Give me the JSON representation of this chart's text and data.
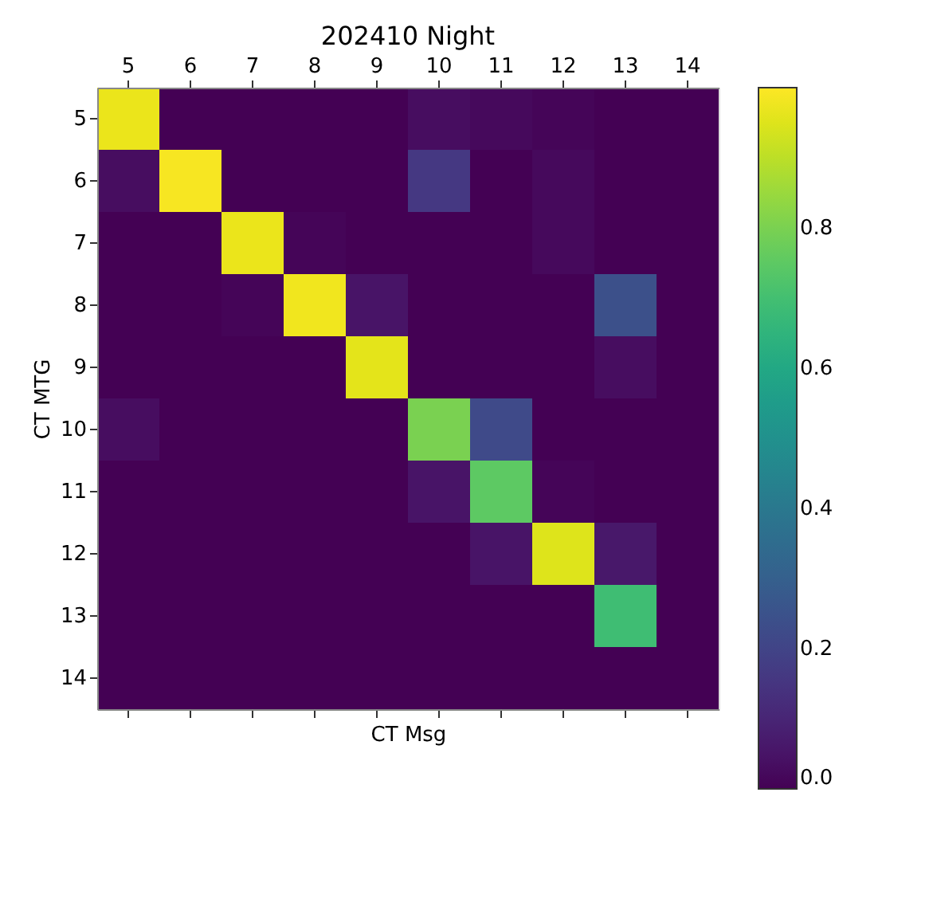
{
  "chart_data": {
    "type": "heatmap",
    "title": "202410 Night",
    "xlabel": "CT Msg",
    "ylabel": "CT MTG",
    "categories": [
      "5",
      "6",
      "7",
      "8",
      "9",
      "10",
      "11",
      "12",
      "13",
      "14"
    ],
    "y_categories": [
      "5",
      "6",
      "7",
      "8",
      "9",
      "10",
      "11",
      "12",
      "13",
      "14"
    ],
    "cells": [
      [
        0.97,
        0,
        0,
        0,
        0,
        0.03,
        0.02,
        0.01,
        0,
        0
      ],
      [
        0.03,
        0.99,
        0,
        0,
        0,
        0.16,
        0,
        0.02,
        0,
        0
      ],
      [
        0,
        0,
        0.97,
        0.01,
        0,
        0,
        0,
        0.02,
        0,
        0
      ],
      [
        0,
        0,
        0.01,
        0.98,
        0.05,
        0,
        0,
        0,
        0.24,
        0
      ],
      [
        0,
        0,
        0,
        0,
        0.96,
        0,
        0,
        0,
        0.03,
        0
      ],
      [
        0.03,
        0,
        0,
        0,
        0,
        0.8,
        0.22,
        0,
        0,
        0
      ],
      [
        0,
        0,
        0,
        0,
        0,
        0.05,
        0.75,
        0.01,
        0,
        0
      ],
      [
        0,
        0,
        0,
        0,
        0,
        0,
        0.05,
        0.95,
        0.06,
        0
      ],
      [
        0,
        0,
        0,
        0,
        0,
        0,
        0,
        0,
        0.69,
        0
      ],
      [
        0,
        0,
        0,
        0,
        0,
        0,
        0,
        0,
        0,
        0
      ]
    ],
    "clim": [
      0,
      1.0
    ],
    "cticks": [
      {
        "value": 0,
        "label": "0.0"
      },
      {
        "value": 0.2,
        "label": "0.2"
      },
      {
        "value": 0.4,
        "label": "0.4"
      },
      {
        "value": 0.6,
        "label": "0.6"
      },
      {
        "value": 0.8,
        "label": "0.8"
      }
    ],
    "tick_labels": "xy",
    "grid": false
  }
}
